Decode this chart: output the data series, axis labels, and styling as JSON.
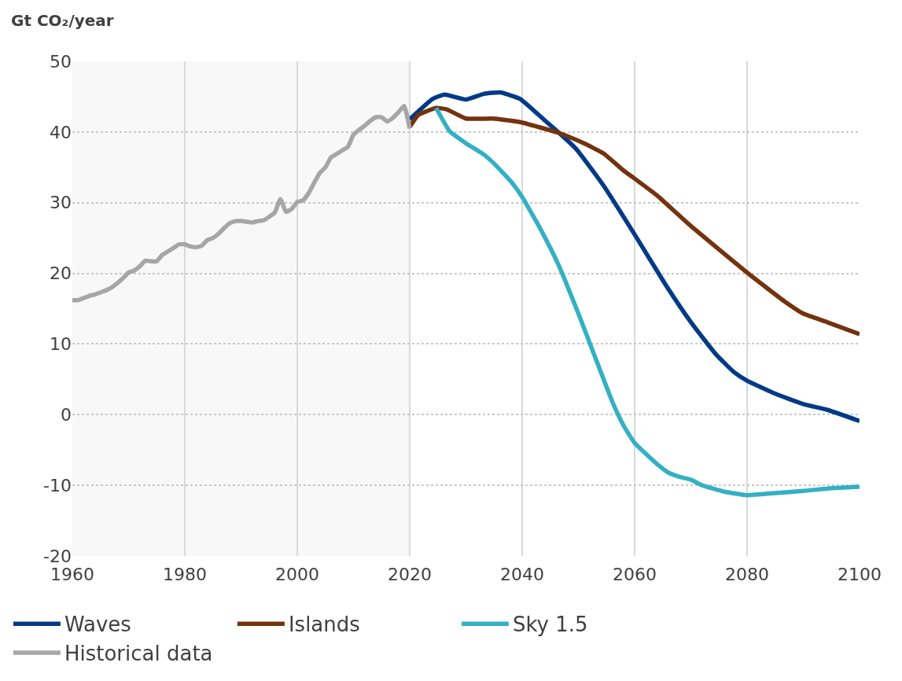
{
  "chart_data": {
    "type": "line",
    "ylabel": "Gt CO₂/year",
    "xlim": [
      1960,
      2100
    ],
    "xticks": [
      1960,
      1980,
      2000,
      2020,
      2040,
      2060,
      2080,
      2100
    ],
    "ylim": [
      -20,
      50
    ],
    "yticks": [
      -20,
      -10,
      0,
      10,
      20,
      30,
      40,
      50
    ],
    "grid": true,
    "legend": "bottom",
    "marker": "none",
    "line_style": "solid",
    "bands": [
      {
        "axis": "x",
        "from": 1960,
        "to": 2020,
        "color": "#f8f8f8"
      }
    ],
    "series": [
      {
        "name": "Waves",
        "color": "#003a87",
        "x": [
          2020,
          2024.1,
          2026.2,
          2030,
          2033.2,
          2036.1,
          2039.6,
          2043.8,
          2046.4,
          2049.6,
          2054.4,
          2060,
          2065.5,
          2070,
          2074.5,
          2077.7,
          2080,
          2084.6,
          2090,
          2094.2,
          2100
        ],
        "values": [
          41.8,
          44.7,
          45.3,
          44.6,
          45.4,
          45.6,
          44.7,
          41.8,
          40,
          37.6,
          32.5,
          25.5,
          18.4,
          13.1,
          8.5,
          6.0,
          4.8,
          3.1,
          1.5,
          0.7,
          -0.9
        ]
      },
      {
        "name": "Islands",
        "color": "#73330e",
        "x": [
          2020,
          2021.5,
          2024.7,
          2026.6,
          2030,
          2034.8,
          2039.6,
          2046.4,
          2050.7,
          2054.4,
          2058.1,
          2060,
          2064,
          2070,
          2080,
          2086.7,
          2090,
          2094.2,
          2100
        ],
        "values": [
          40.7,
          42.4,
          43.4,
          43.2,
          41.9,
          41.9,
          41.4,
          39.9,
          38.5,
          37,
          34.5,
          33.4,
          31,
          26.7,
          20.1,
          16,
          14.3,
          13.1,
          11.4
        ]
      },
      {
        "name": "Sky 1.5",
        "color": "#34b0c3",
        "x": [
          2024.7,
          2027.1,
          2030,
          2033.2,
          2035.3,
          2038.2,
          2040,
          2043.3,
          2046.4,
          2050,
          2052.8,
          2056,
          2058,
          2060,
          2064,
          2066,
          2068,
          2070,
          2072,
          2076,
          2080,
          2085,
          2090,
          2095,
          2100
        ],
        "values": [
          43.4,
          40.1,
          38.4,
          36.8,
          35.3,
          32.8,
          30.8,
          26.2,
          21.3,
          14.3,
          8.5,
          1.9,
          -1.5,
          -4,
          -7,
          -8.2,
          -8.8,
          -9.2,
          -10,
          -10.9,
          -11.4,
          -11.1,
          -10.8,
          -10.4,
          -10.2
        ]
      },
      {
        "name": "Historical data",
        "color": "#a6a6a6",
        "x": [
          1960,
          1961,
          1962,
          1963,
          1964,
          1965,
          1966,
          1967,
          1968,
          1969,
          1970,
          1971,
          1972,
          1973,
          1974,
          1975,
          1976,
          1977,
          1978,
          1979,
          1980,
          1981,
          1982,
          1983,
          1984,
          1985,
          1986,
          1987,
          1988,
          1989,
          1990,
          1991,
          1992,
          1993,
          1994,
          1995,
          1996,
          1997,
          1998,
          1999,
          2000,
          2001,
          2002,
          2003,
          2004,
          2005,
          2006,
          2007,
          2008,
          2009,
          2010,
          2011,
          2012,
          2013,
          2014,
          2015,
          2016,
          2017,
          2018,
          2019,
          2020
        ],
        "values": [
          16.2,
          16.2,
          16.5,
          16.8,
          17.0,
          17.3,
          17.6,
          18.0,
          18.6,
          19.3,
          20.1,
          20.4,
          21.0,
          21.8,
          21.7,
          21.7,
          22.6,
          23.1,
          23.6,
          24.1,
          24.1,
          23.8,
          23.7,
          23.9,
          24.7,
          25.0,
          25.6,
          26.4,
          27.1,
          27.4,
          27.4,
          27.3,
          27.2,
          27.4,
          27.5,
          28.0,
          28.6,
          30.5,
          28.7,
          29.1,
          30.1,
          30.3,
          31.3,
          32.8,
          34.2,
          35.0,
          36.4,
          36.9,
          37.4,
          37.9,
          39.6,
          40.3,
          40.9,
          41.6,
          42.1,
          42.1,
          41.5,
          42.0,
          42.8,
          43.7,
          40.5
        ]
      }
    ]
  }
}
